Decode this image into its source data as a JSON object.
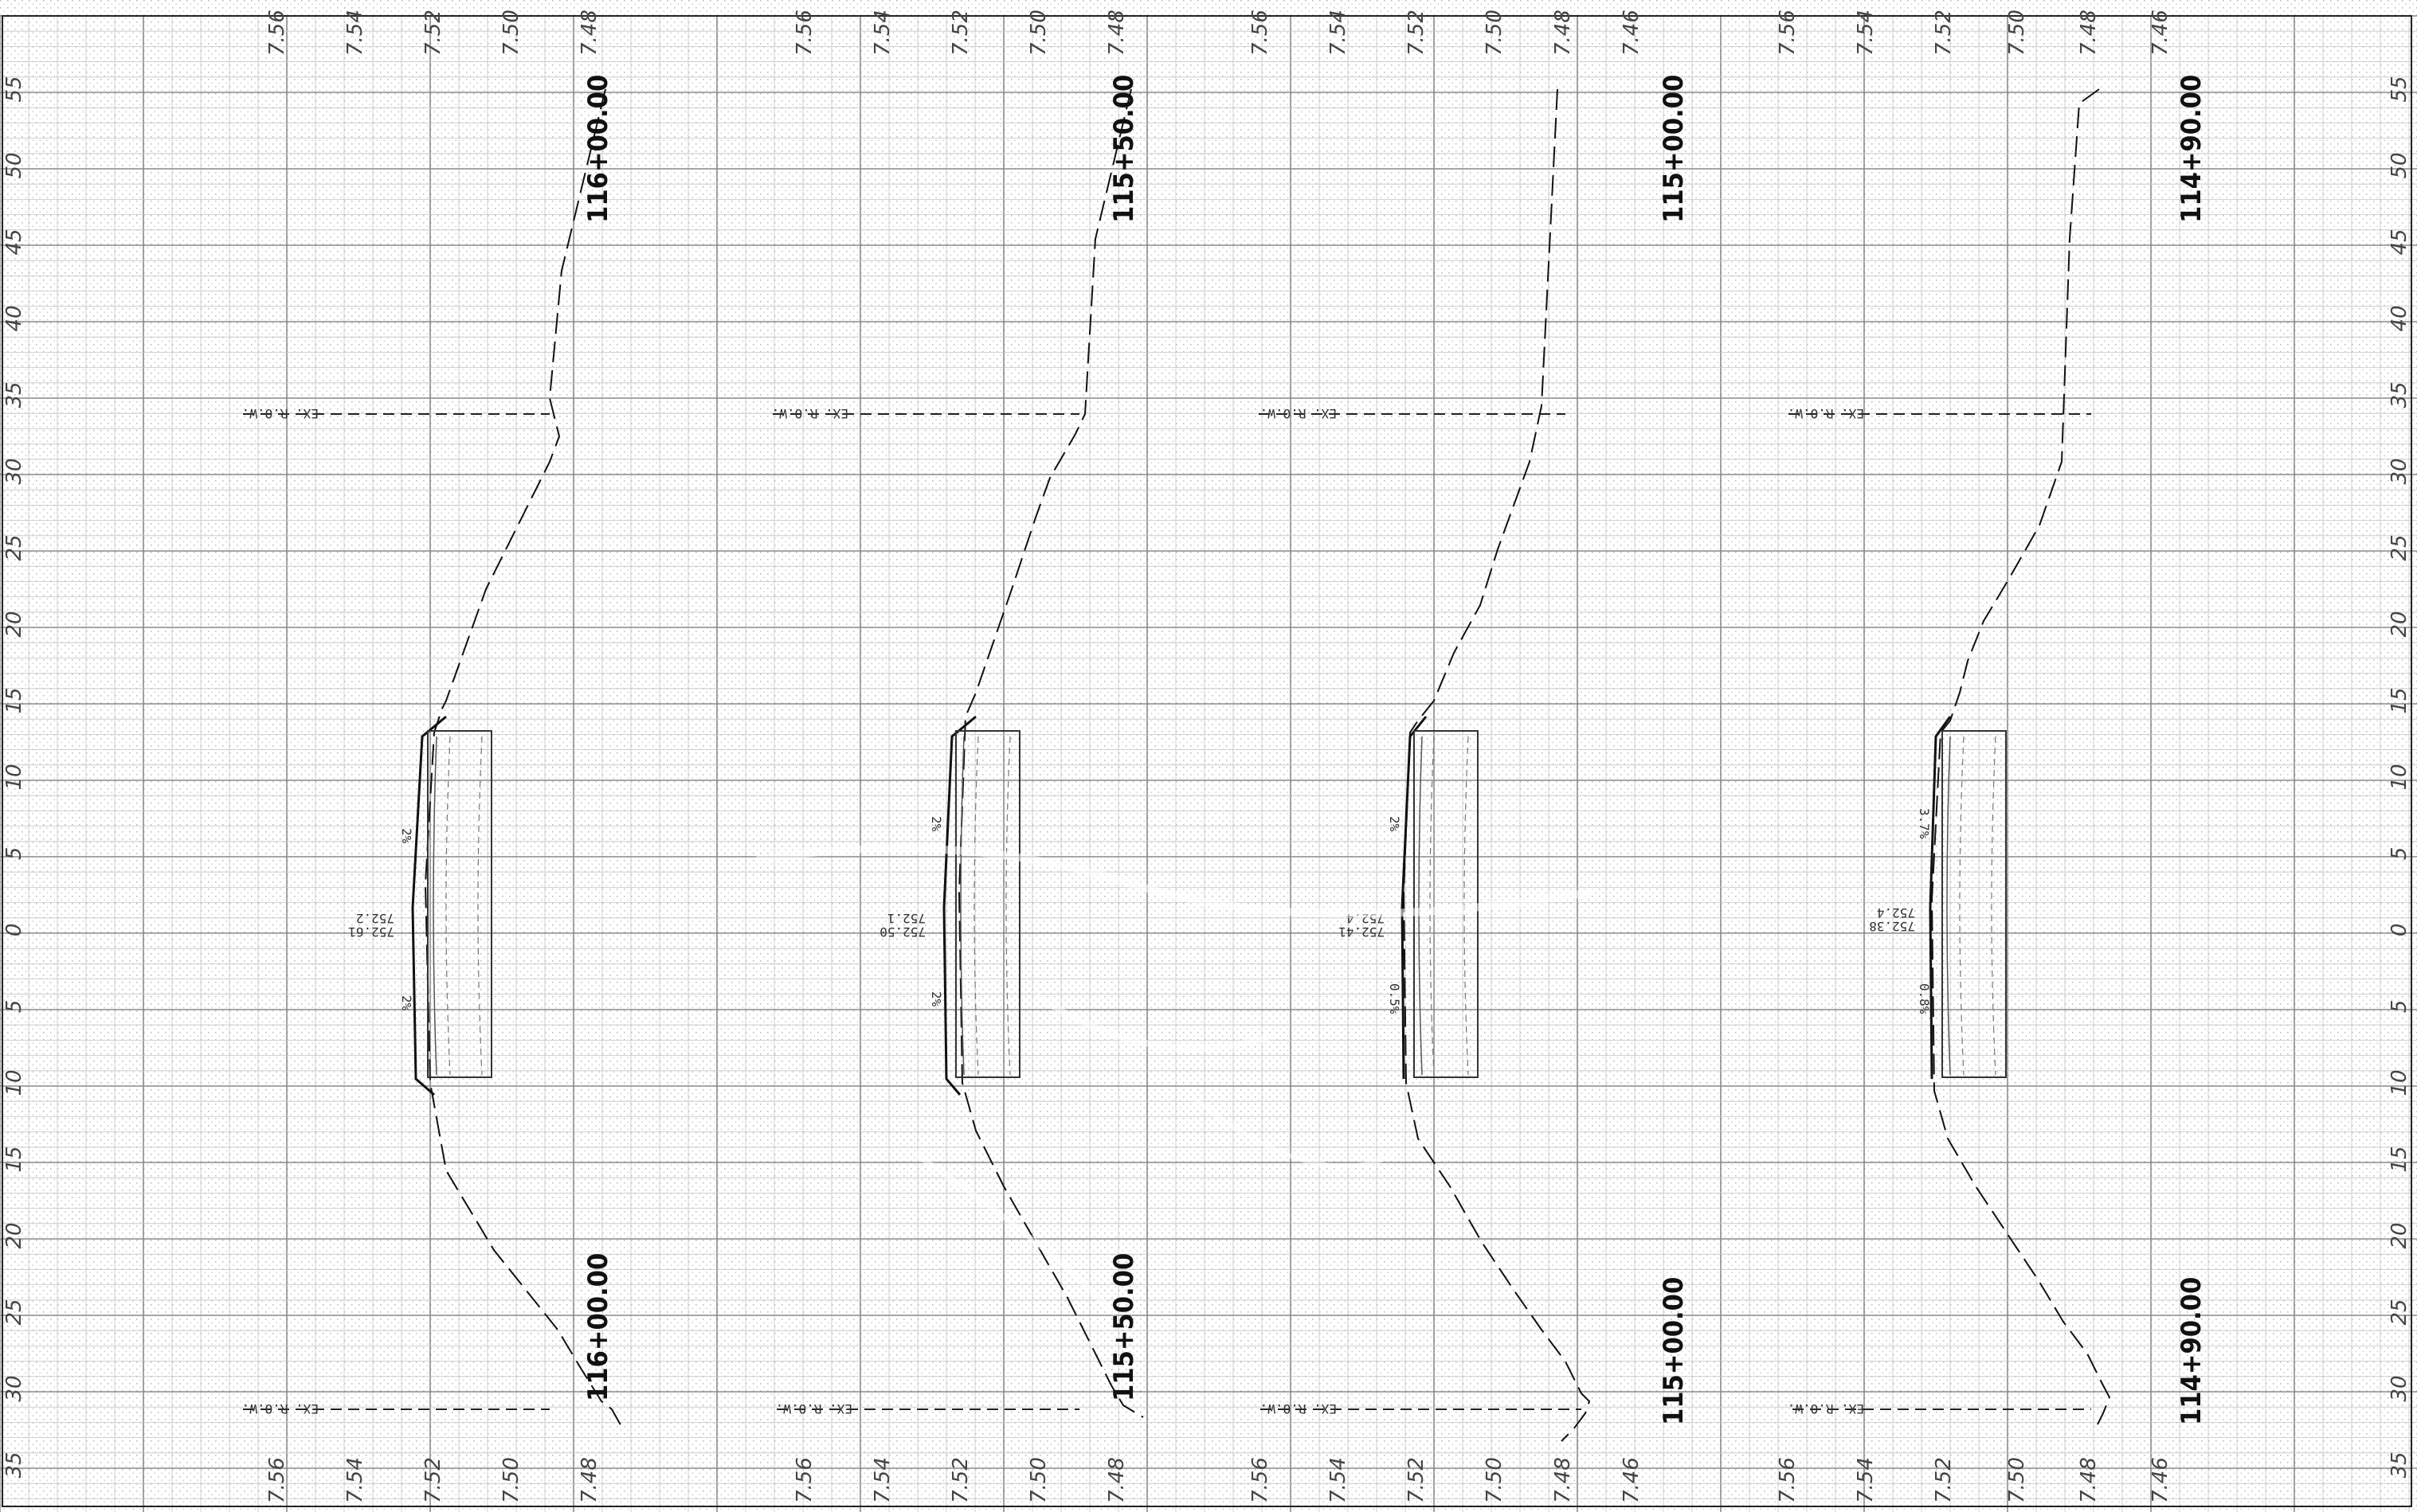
{
  "offset_labels": {
    "right_edge": [
      "55",
      "50",
      "45",
      "40",
      "35",
      "30",
      "25",
      "20",
      "15",
      "10",
      "5",
      "0",
      "5",
      "10",
      "15",
      "20",
      "25",
      "30",
      "35"
    ],
    "left_edge": [
      "55",
      "50",
      "45",
      "40",
      "35",
      "30",
      "25",
      "20",
      "15",
      "10",
      "5",
      "0",
      "5",
      "10",
      "15",
      "20",
      "25",
      "30",
      "35"
    ]
  },
  "sections": [
    {
      "id": "s1",
      "station_top": "116+00.00",
      "station_bottom": "116+00.00",
      "elev_top": [
        "7.56",
        "7.54",
        "7.52",
        "7.50",
        "7.48"
      ],
      "elev_bottom": [
        "7.56",
        "7.54",
        "7.52",
        "7.50",
        "7.48"
      ],
      "row_top": "EX. R.O.W.",
      "row_bottom": "EX. R.O.W.",
      "slope_upper": "2%",
      "slope_lower": "2%",
      "cl_elev_1": "752.61",
      "cl_elev_2": "752.2"
    },
    {
      "id": "s2",
      "station_top": "115+50.00",
      "station_bottom": "115+50.00",
      "elev_top": [
        "7.56",
        "7.54",
        "7.52",
        "7.50",
        "7.48"
      ],
      "elev_bottom": [
        "7.56",
        "7.54",
        "7.52",
        "7.50",
        "7.48"
      ],
      "row_top": "EX. R.O.W.",
      "row_bottom": "EX. R.O.W.",
      "slope_upper": "2%",
      "slope_lower": "2%",
      "cl_elev_1": "752.50",
      "cl_elev_2": "752.1"
    },
    {
      "id": "s3",
      "station_top": "115+00.00",
      "station_bottom": "115+00.00",
      "elev_top": [
        "7.56",
        "7.54",
        "7.52",
        "7.50",
        "7.48",
        "7.46"
      ],
      "elev_bottom": [
        "7.56",
        "7.54",
        "7.52",
        "7.50",
        "7.48",
        "7.46"
      ],
      "row_top": "EX. R.O.W.",
      "row_bottom": "EX. R.O.W.",
      "slope_upper": "2%",
      "slope_lower": "0.5%",
      "cl_elev_1": "752.41",
      "cl_elev_2": "752.4"
    },
    {
      "id": "s4",
      "station_top": "114+90.00",
      "station_bottom": "114+90.00",
      "elev_top": [
        "7.56",
        "7.54",
        "7.52",
        "7.50",
        "7.48",
        "7.46"
      ],
      "elev_bottom": [
        "7.56",
        "7.54",
        "7.52",
        "7.50",
        "7.48",
        "7.46"
      ],
      "row_top": "EX. R.O.W.",
      "row_bottom": "EX. R.O.W.",
      "slope_upper": "3.7%",
      "slope_lower": "0.8%",
      "cl_elev_1": "752.38",
      "cl_elev_2": "752.4"
    }
  ],
  "colors": {
    "grid_major": "#8a8a8a",
    "grid_minor": "#c4c4c4",
    "line": "#111111"
  }
}
